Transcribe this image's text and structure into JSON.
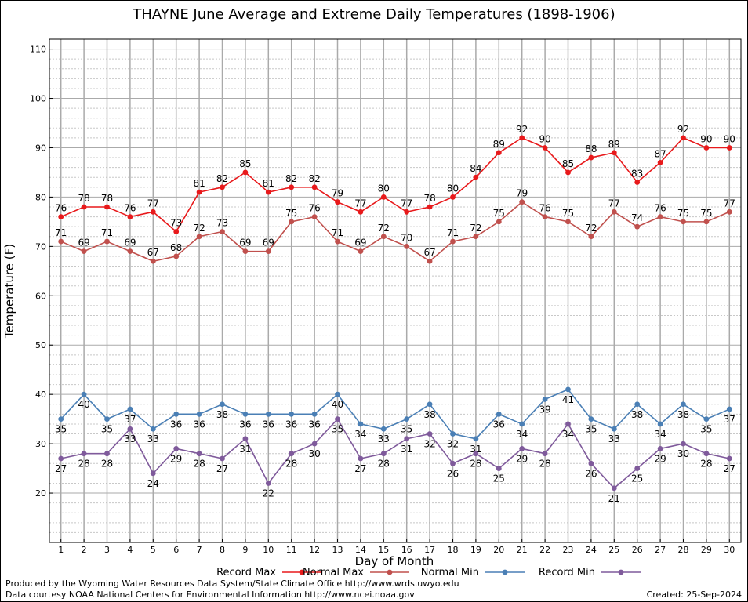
{
  "chart_data": {
    "type": "line",
    "title": "THAYNE June Average and Extreme Daily Temperatures (1898-1906)",
    "xlabel": "Day of Month",
    "ylabel": "Temperature (F)",
    "ylim": [
      10,
      112
    ],
    "yticks": [
      20,
      30,
      40,
      50,
      60,
      70,
      80,
      90,
      100,
      110
    ],
    "xlim": [
      0.5,
      30.5
    ],
    "grid": true,
    "legend_placement": "bottom",
    "x": [
      1,
      2,
      3,
      4,
      5,
      6,
      7,
      8,
      9,
      10,
      11,
      12,
      13,
      14,
      15,
      16,
      17,
      18,
      19,
      20,
      21,
      22,
      23,
      24,
      25,
      26,
      27,
      28,
      29,
      30
    ],
    "series": [
      {
        "name": "Record Max",
        "color": "#e8191b",
        "label_position": "above",
        "values": [
          76,
          78,
          78,
          76,
          77,
          73,
          81,
          82,
          85,
          81,
          82,
          82,
          79,
          77,
          80,
          77,
          78,
          80,
          84,
          89,
          92,
          90,
          85,
          88,
          89,
          83,
          87,
          92,
          90,
          90
        ],
        "labels": [
          "76",
          "78",
          "78",
          "76",
          "77",
          "73",
          "81",
          "82",
          "85",
          "81",
          "82",
          "82",
          "79",
          "77",
          "80",
          "77",
          "78",
          "80",
          "84",
          "89",
          "92",
          "90",
          "85",
          "88",
          "89",
          "83",
          "87",
          "92",
          "90",
          "90"
        ]
      },
      {
        "name": "Normal Max",
        "color": "#c0504d",
        "label_position": "above",
        "values": [
          71,
          69,
          71,
          69,
          67,
          68,
          72,
          73,
          69,
          69,
          75,
          76,
          71,
          69,
          72,
          70,
          67,
          71,
          72,
          75,
          79,
          76,
          75,
          72,
          77,
          74,
          76,
          75,
          75,
          77
        ],
        "labels": [
          "71",
          "69",
          "71",
          "69",
          "67",
          "68",
          "72",
          "73",
          "69",
          "69",
          "75",
          "76",
          "71",
          "69",
          "72",
          "70",
          "67",
          "71",
          "72",
          "75",
          "79",
          "76",
          "75",
          "72",
          "77",
          "74",
          "76",
          "75",
          "75",
          "77"
        ]
      },
      {
        "name": "Normal Min",
        "color": "#4a7fb5",
        "label_position": "below",
        "values": [
          35,
          40,
          35,
          37,
          33,
          36,
          36,
          38,
          36,
          36,
          36,
          36,
          40,
          34,
          33,
          35,
          38,
          32,
          31,
          36,
          34,
          39,
          41,
          35,
          33,
          38,
          34,
          38,
          35,
          37
        ],
        "labels": [
          "35",
          "40",
          "35",
          "37",
          "33",
          "36",
          "36",
          "38",
          "36",
          "36",
          "36",
          "36",
          "40",
          "34",
          "33",
          "35",
          "38",
          "32",
          "31",
          "36",
          "34",
          "39",
          "41",
          "35",
          "33",
          "38",
          "34",
          "38",
          "35",
          "37"
        ]
      },
      {
        "name": "Record Min",
        "color": "#7f5a9b",
        "label_position": "below",
        "values": [
          27,
          28,
          28,
          33,
          24,
          29,
          28,
          27,
          31,
          22,
          28,
          30,
          35,
          27,
          28,
          31,
          32,
          26,
          28,
          25,
          29,
          28,
          34,
          26,
          21,
          25,
          29,
          30,
          28,
          27
        ],
        "labels": [
          "27",
          "28",
          "28",
          "33",
          "24",
          "29",
          "28",
          "27",
          "31",
          "22",
          "28",
          "30",
          "35",
          "27",
          "28",
          "31",
          "32",
          "26",
          "28",
          "25",
          "29",
          "28",
          "34",
          "26",
          "21",
          "25",
          "29",
          "30",
          "28",
          "27"
        ]
      }
    ]
  },
  "footer": {
    "produced_by": "Produced by the Wyoming Water Resources Data System/State Climate Office http://www.wrds.uwyo.edu",
    "courtesy": "Data courtesy NOAA National Centers for Environmental Information http://www.ncei.noaa.gov",
    "created": "Created:  25-Sep-2024"
  }
}
